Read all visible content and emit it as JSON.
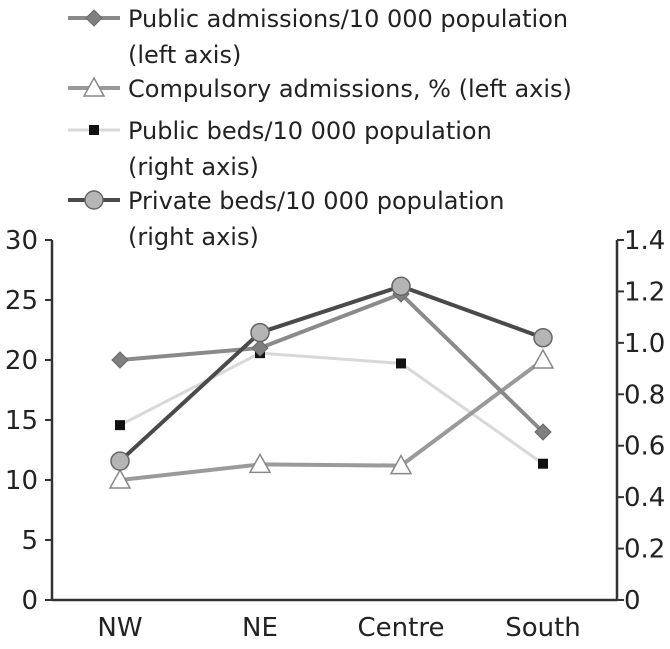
{
  "chart_data": {
    "type": "line",
    "categories": [
      "NW",
      "NE",
      "Centre",
      "South"
    ],
    "left_axis": {
      "ylim": [
        0,
        30
      ],
      "ticks": [
        "0",
        "5",
        "10",
        "15",
        "20",
        "25",
        "30"
      ]
    },
    "right_axis": {
      "ylim": [
        0,
        1.4
      ],
      "ticks": [
        "0",
        "0.2",
        "0.4",
        "0.6",
        "0.8",
        "1.0",
        "1.2",
        "1.4"
      ]
    },
    "grid": false,
    "legend_position": "top",
    "series": [
      {
        "name": "Public admissions/10 000 population",
        "name_line2": "(left axis)",
        "axis": "left",
        "values": [
          20,
          21,
          25.5,
          14
        ],
        "color": "#8a8a8a",
        "marker": "diamond"
      },
      {
        "name": "Compulsory admissions, % (left axis)",
        "name_line2": "",
        "axis": "left",
        "values": [
          10,
          11.3,
          11.2,
          20
        ],
        "color": "#9a9a9a",
        "marker": "triangle"
      },
      {
        "name": "Public beds/10 000 population",
        "name_line2": "(right axis)",
        "axis": "right",
        "values": [
          0.68,
          0.96,
          0.92,
          0.53
        ],
        "color": "#d8d8d8",
        "marker": "square"
      },
      {
        "name": "Private beds/10 000 population",
        "name_line2": "(right axis)",
        "axis": "right",
        "values": [
          0.54,
          1.04,
          1.22,
          1.02
        ],
        "color": "#4a4a4a",
        "marker": "circle"
      }
    ]
  }
}
